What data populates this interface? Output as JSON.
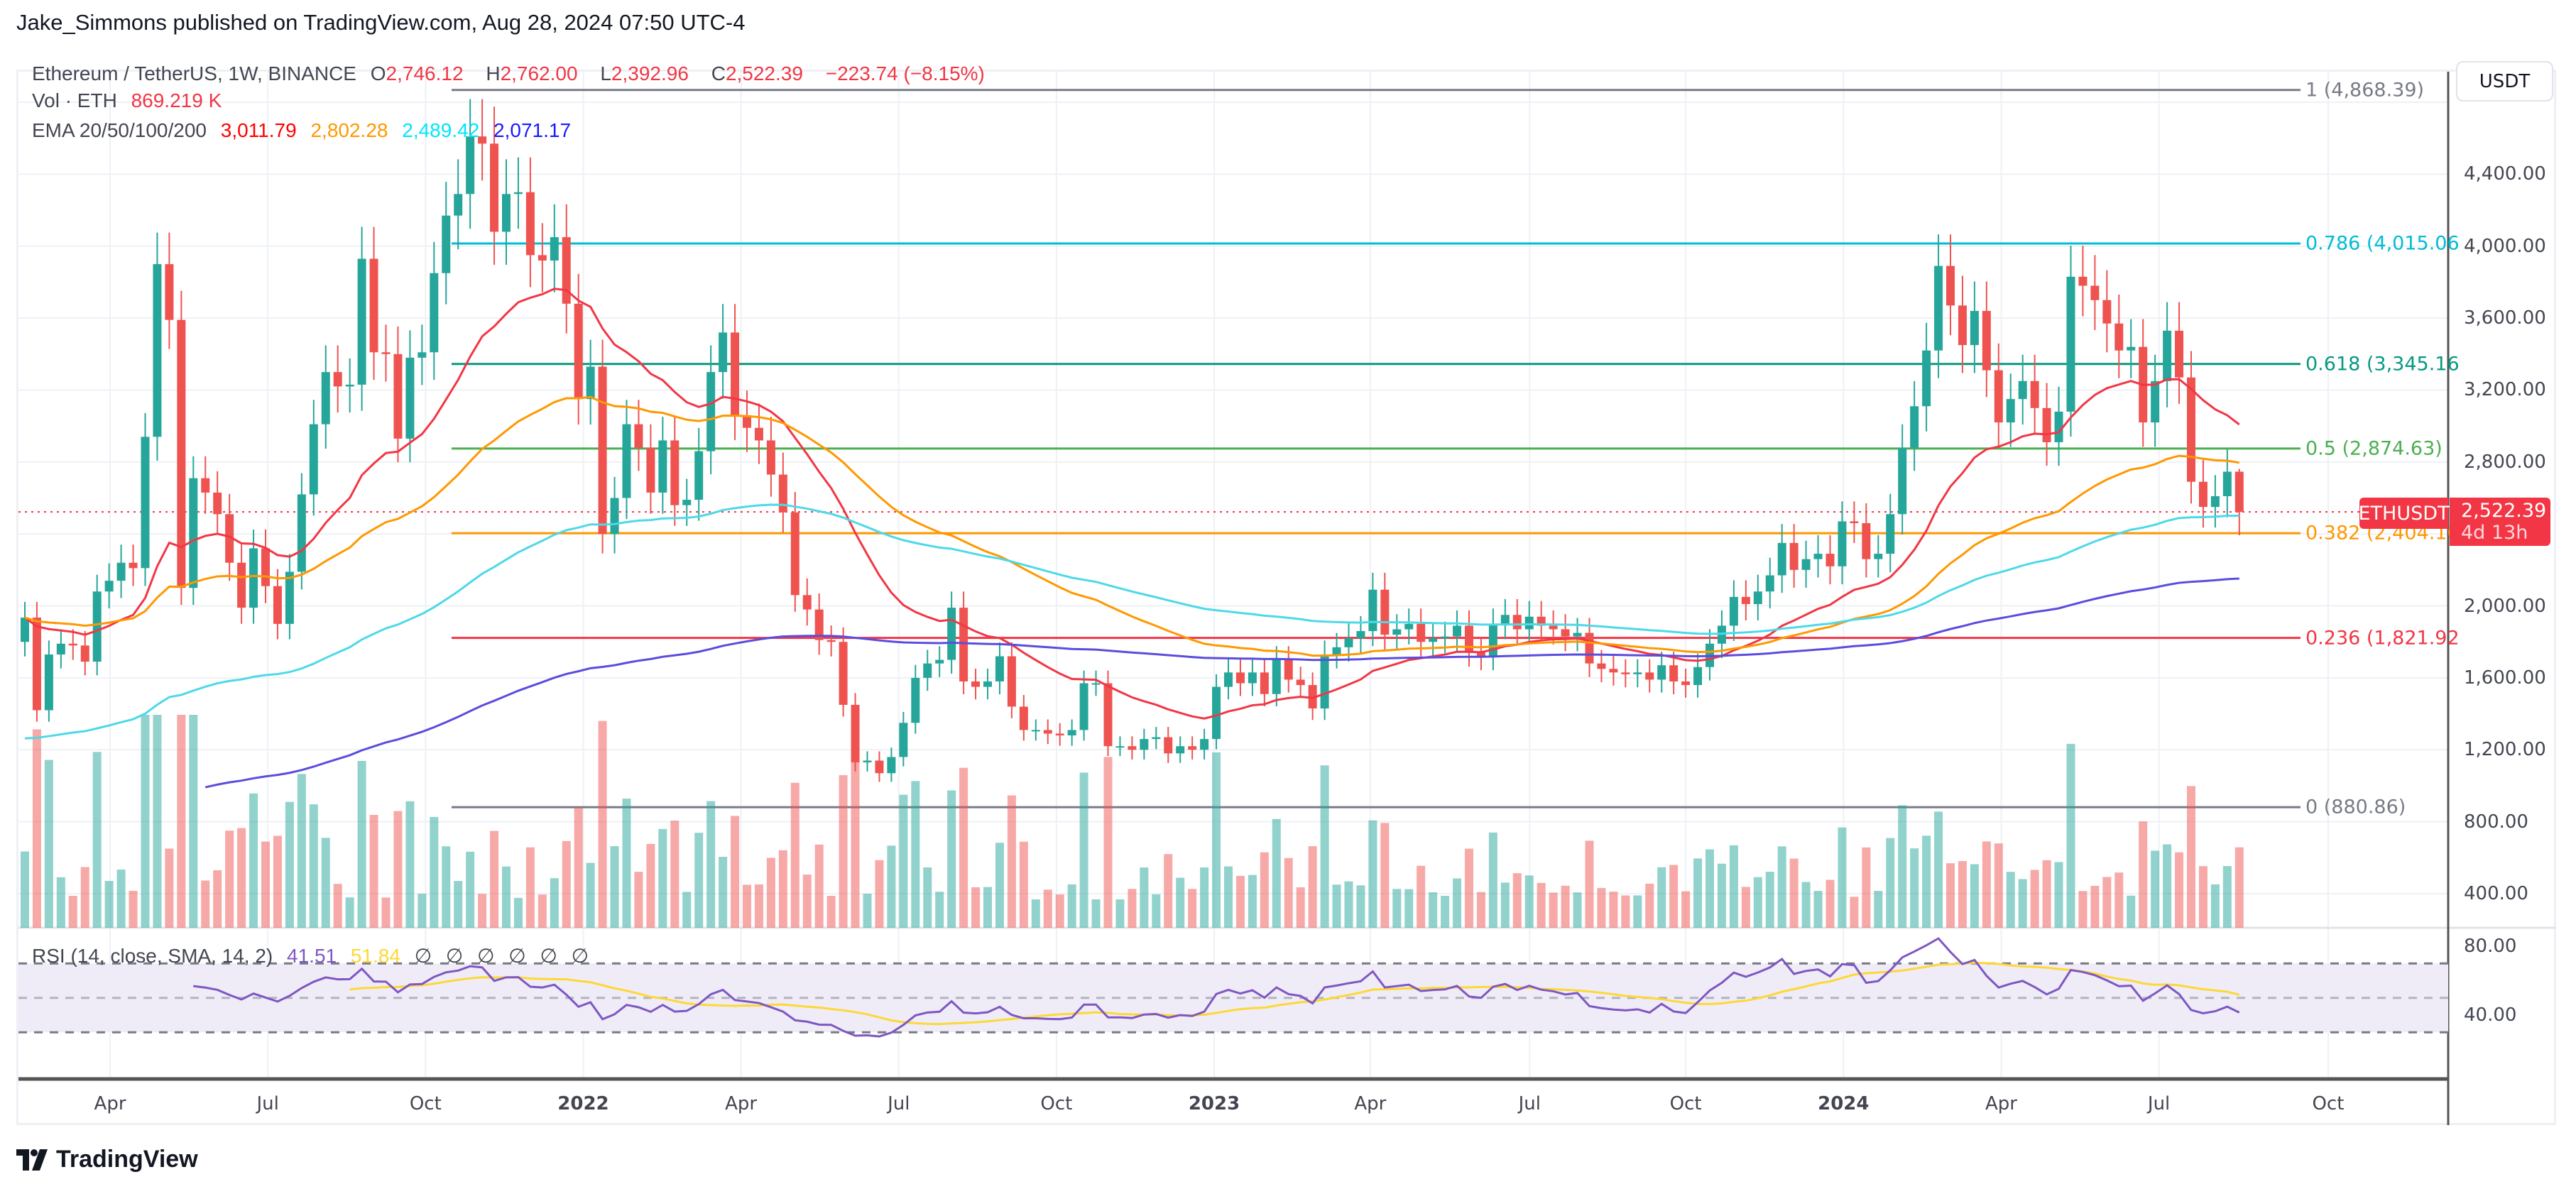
{
  "header": {
    "title": "Jake_Simmons published on TradingView.com, Aug 28, 2024 07:50 UTC-4"
  },
  "legend": {
    "symbol": "Ethereum / TetherUS, 1W, BINANCE",
    "o_label": "O",
    "o": "2,746.12",
    "h_label": "H",
    "h": "2,762.00",
    "l_label": "L",
    "l": "2,392.96",
    "c_label": "C",
    "c": "2,522.39",
    "change": "−223.74 (−8.15%)",
    "vol_label": "Vol · ETH",
    "vol": "869.219 K",
    "ema_label": "EMA 20/50/100/200",
    "ema20": "3,011.79",
    "ema50": "2,802.28",
    "ema100": "2,489.42",
    "ema200": "2,071.17"
  },
  "rsi_legend": {
    "label": "RSI (14, close, SMA, 14, 2)",
    "rsi": "41.51",
    "sma": "51.84",
    "na": [
      "∅",
      "∅",
      "∅",
      "∅",
      "∅",
      "∅"
    ]
  },
  "price_axis": {
    "currency_button": "USDT",
    "ticks": [
      "4,400.00",
      "4,000.00",
      "3,600.00",
      "3,200.00",
      "2,800.00",
      "2,000.00",
      "1,600.00",
      "1,200.00",
      "800.00",
      "400.00"
    ],
    "rsi_ticks": [
      "80.00",
      "40.00"
    ]
  },
  "last_price": {
    "symbol": "ETHUSDT",
    "price": "2,522.39",
    "countdown": "4d 13h"
  },
  "time_axis": [
    "Apr",
    "Jul",
    "Oct",
    "2022",
    "Apr",
    "Jul",
    "Oct",
    "2023",
    "Apr",
    "Jul",
    "Oct",
    "2024",
    "Apr",
    "Jul",
    "Oct"
  ],
  "fib_levels": [
    {
      "label": "1 (4,868.39)",
      "level": 1,
      "price": 4868.39,
      "color": "#787b86"
    },
    {
      "label": "0.786 (4,015.06",
      "level": 0.786,
      "price": 4015.06,
      "color": "#00bcd4"
    },
    {
      "label": "0.618 (3,345.16",
      "level": 0.618,
      "price": 3345.16,
      "color": "#089981"
    },
    {
      "label": "0.5 (2,874.63)",
      "level": 0.5,
      "price": 2874.63,
      "color": "#4caf50"
    },
    {
      "label": "0.382 (2,404.10",
      "level": 0.382,
      "price": 2404.1,
      "color": "#ff9800"
    },
    {
      "label": "0.236 (1,821.92",
      "level": 0.236,
      "price": 1821.92,
      "color": "#f23645"
    },
    {
      "label": "0 (880.86)",
      "level": 0,
      "price": 880.86,
      "color": "#787b86"
    }
  ],
  "colors": {
    "up": "#26a69a",
    "down": "#ef5350",
    "ema20": "#f23645",
    "ema50": "#ff9800",
    "ema100": "#4dd9e8",
    "ema200": "#5b4cde",
    "rsi": "#7e57c2",
    "rsi_sma": "#fdd835",
    "rsi_band": "#efecf8"
  },
  "logo": {
    "text": "TradingView"
  },
  "chart_data": {
    "type": "candlestick",
    "symbol": "ETHUSDT",
    "interval": "1W",
    "first_week": "2021-02-15",
    "ylim": [
      250,
      5000
    ],
    "last_candle": {
      "open": 2746.12,
      "high": 2762.0,
      "low": 2392.96,
      "close": 2522.39
    },
    "closes": [
      1935,
      1420,
      1730,
      1790,
      1780,
      1690,
      2080,
      2140,
      2240,
      2210,
      2940,
      3900,
      3590,
      2100,
      2710,
      2630,
      2510,
      2240,
      1990,
      2320,
      2110,
      1900,
      2190,
      2620,
      3010,
      3300,
      3220,
      3230,
      3930,
      3410,
      3400,
      2930,
      3380,
      3410,
      3850,
      4170,
      4290,
      4610,
      4570,
      4080,
      4290,
      4300,
      3950,
      3920,
      4050,
      3680,
      3150,
      3330,
      2400,
      2600,
      3010,
      2880,
      2630,
      2920,
      2560,
      2590,
      2860,
      3300,
      3520,
      3060,
      2990,
      2920,
      2730,
      2520,
      2060,
      1980,
      1810,
      1800,
      1450,
      1130,
      1140,
      1070,
      1160,
      1350,
      1600,
      1680,
      1700,
      1990,
      1580,
      1550,
      1580,
      1720,
      1440,
      1310,
      1310,
      1290,
      1280,
      1310,
      1570,
      1570,
      1220,
      1220,
      1200,
      1260,
      1270,
      1180,
      1220,
      1200,
      1260,
      1550,
      1630,
      1570,
      1630,
      1510,
      1700,
      1590,
      1560,
      1430,
      1730,
      1770,
      1820,
      1860,
      2090,
      1840,
      1870,
      1900,
      1800,
      1820,
      1830,
      1890,
      1740,
      1720,
      1900,
      1950,
      1870,
      1940,
      1890,
      1870,
      1830,
      1850,
      1680,
      1650,
      1630,
      1620,
      1630,
      1590,
      1670,
      1580,
      1560,
      1660,
      1790,
      1890,
      2050,
      2010,
      2080,
      2170,
      2350,
      2200,
      2260,
      2290,
      2220,
      2470,
      2460,
      2260,
      2290,
      2510,
      2880,
      3110,
      3420,
      3890,
      3670,
      3450,
      3640,
      3310,
      3020,
      3150,
      3250,
      3100,
      2910,
      3080,
      3830,
      3780,
      3700,
      3570,
      3420,
      3440,
      3020,
      3250,
      3530,
      3270,
      2690,
      2550,
      2610,
      2746.12,
      2522.39
    ],
    "ema_periods": [
      20,
      50,
      100,
      200
    ],
    "rsi": {
      "length": 14,
      "sma_length": 14,
      "levels": [
        70,
        50,
        30
      ],
      "ylim": [
        0,
        100
      ]
    }
  }
}
